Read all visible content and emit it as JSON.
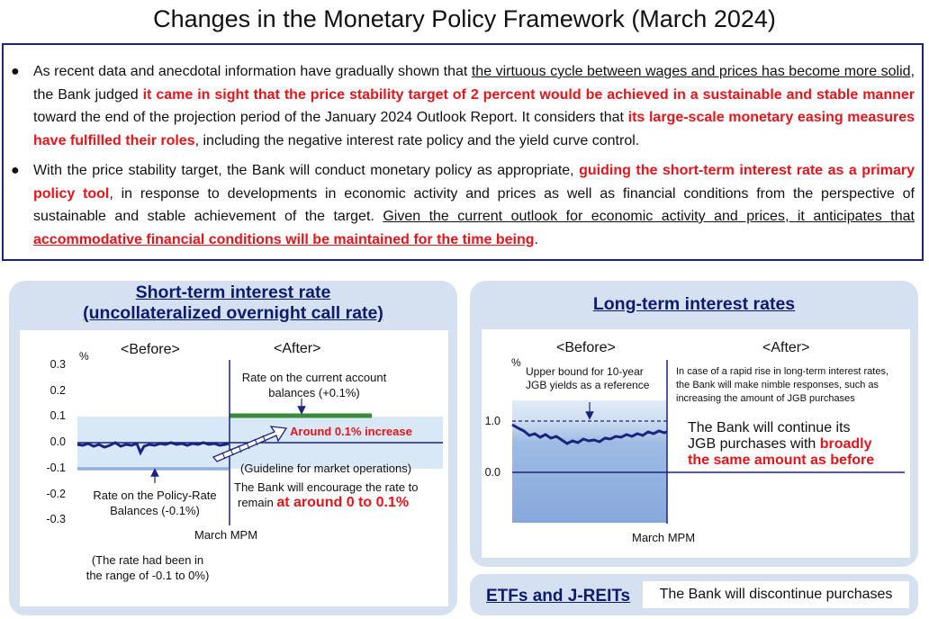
{
  "title": "Changes in the Monetary Policy Framework (March 2024)",
  "bullets": [
    {
      "segments": [
        {
          "text": "As recent data and anecdotal information have gradually shown that ",
          "style": "plain"
        },
        {
          "text": "the virtuous cycle between wages and prices has become more solid",
          "style": "underline"
        },
        {
          "text": ", the Bank judged ",
          "style": "plain"
        },
        {
          "text": "it came in sight that the price stability target of 2 percent would be achieved in a sustainable and stable manner",
          "style": "red"
        },
        {
          "text": " toward the end of the projection period of the January 2024 Outlook Report. It considers that ",
          "style": "plain"
        },
        {
          "text": "its large-scale monetary easing measures have fulfilled their roles",
          "style": "red"
        },
        {
          "text": ", including the negative interest rate policy and the yield curve control.",
          "style": "plain"
        }
      ]
    },
    {
      "segments": [
        {
          "text": "With the price stability target, the Bank will conduct monetary policy as appropriate, ",
          "style": "plain"
        },
        {
          "text": "guiding the short-term interest rate as a primary policy tool",
          "style": "red"
        },
        {
          "text": ", in response to developments in economic activity and prices as well as financial conditions from the perspective of sustainable and stable achievement of the target. ",
          "style": "plain"
        },
        {
          "text": "Given the current outlook for economic activity and prices, it anticipates that ",
          "style": "underline"
        },
        {
          "text": "accommodative financial conditions will be maintained for the time being",
          "style": "red-underline"
        },
        {
          "text": ".",
          "style": "plain"
        }
      ]
    }
  ],
  "short_term": {
    "title_line1": "Short-term interest rate",
    "title_line2": "(uncollateralized overnight call rate)",
    "before": "<Before>",
    "after": "<After>",
    "unit": "%",
    "ticks": [
      "0.3",
      "0.2",
      "0.1",
      "0.0",
      "-0.1",
      "-0.2",
      "-0.3"
    ],
    "current_account_label_1": "Rate on the current account",
    "current_account_label_2": "balances (+0.1%)",
    "increase_label": "Around 0.1% increase",
    "guideline": "(Guideline for market operations)",
    "encourage_1": "The Bank will encourage the rate to",
    "encourage_prefix": "remain ",
    "encourage_red": "at around 0 to 0.1%",
    "policy_rate_label_1": "Rate on the Policy-Rate",
    "policy_rate_label_2": "Balances (-0.1%)",
    "march_mpm": "March MPM",
    "range_note_1": "(The rate had been in",
    "range_note_2": "the range of -0.1 to 0%)"
  },
  "long_term": {
    "title": "Long-term interest rates",
    "before": "<Before>",
    "after": "<After>",
    "unit": "%",
    "ticks": [
      "1.0",
      "0.0"
    ],
    "upper_bound_1": "Upper bound for 10-year",
    "upper_bound_2": "JGB yields as a reference",
    "after_note_1": "In case of a rapid rise in long-term interest rates,",
    "after_note_2": "the Bank will make nimble responses, such as",
    "after_note_3": "increasing the amount of JGB purchases",
    "continue_1": "The Bank will continue its",
    "continue_2_prefix": "JGB purchases with ",
    "continue_2_red": "broadly",
    "continue_3_red": "the same amount as before",
    "march_mpm": "March MPM"
  },
  "etf": {
    "title": "ETFs and J-REITs",
    "text": "The Bank will discontinue purchases"
  },
  "colors": {
    "navy": "#1a237e",
    "red": "#e8141a",
    "panel": "#d5e1f1",
    "green": "#3a8c3a",
    "light_blue": "#d9e8f7",
    "mid_blue": "#8fb0de"
  }
}
